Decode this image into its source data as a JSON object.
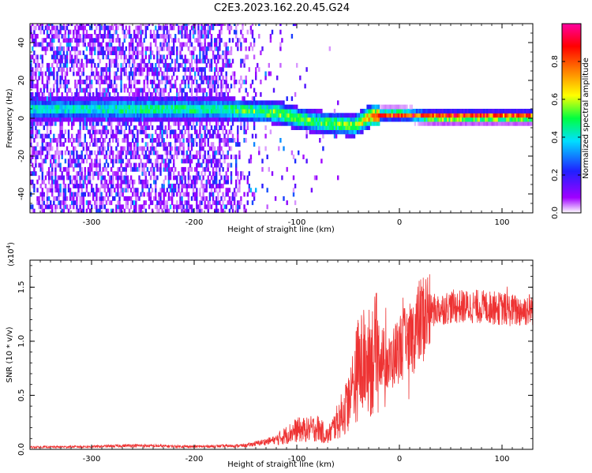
{
  "title": "C2E3.2023.162.20.45.G24",
  "chart_data": [
    {
      "type": "heatmap",
      "xlabel": "Height of straight line (km)",
      "ylabel": "Frequency (Hz)",
      "xlim": [
        -360,
        130
      ],
      "ylim": [
        -50,
        50
      ],
      "xticks": [
        -300,
        -200,
        -100,
        0,
        100
      ],
      "xtick_labels": [
        "-300",
        "-200",
        "-100",
        "0",
        "100"
      ],
      "yticks": [
        -40,
        -20,
        0,
        20,
        40
      ],
      "ytick_labels": [
        "-40",
        "-20",
        "0",
        "20",
        "40"
      ],
      "colorbar": {
        "label": "Normalized spectral amplitude",
        "range": [
          0,
          1
        ],
        "ticks": [
          0.0,
          0.2,
          0.4,
          0.6,
          0.8
        ],
        "tick_labels": [
          "0.0",
          "0.2",
          "0.4",
          "0.6",
          "0.8"
        ],
        "colors": [
          "#ffffff",
          "#a000ff",
          "#2040ff",
          "#00e0ff",
          "#00ff40",
          "#ffff00",
          "#ff8000",
          "#ff0000",
          "#ff00a0"
        ]
      },
      "description_series": {
        "noise_floor_amplitude_range": [
          0.0,
          0.15
        ],
        "line_center_hz": [
          [
            -300,
            4
          ],
          [
            -270,
            4
          ],
          [
            -175,
            4
          ],
          [
            -150,
            3
          ],
          [
            -120,
            2
          ],
          [
            -100,
            -1
          ],
          [
            -80,
            -3
          ],
          [
            -60,
            -4
          ],
          [
            -45,
            -5
          ],
          [
            -30,
            0
          ],
          [
            -15,
            1
          ],
          [
            0,
            1
          ],
          [
            30,
            0
          ],
          [
            70,
            0
          ],
          [
            100,
            0
          ],
          [
            130,
            0
          ]
        ],
        "line_peak_amplitude": [
          [
            -300,
            0.45
          ],
          [
            -270,
            0.5
          ],
          [
            -175,
            0.5
          ],
          [
            -120,
            0.6
          ],
          [
            -80,
            0.55
          ],
          [
            -45,
            0.6
          ],
          [
            -20,
            0.9
          ],
          [
            0,
            0.9
          ],
          [
            50,
            0.95
          ],
          [
            130,
            0.9
          ]
        ]
      }
    },
    {
      "type": "line",
      "xlabel": "Height of straight line (km)",
      "ylabel": "SNR (10 * v/v)",
      "scale_label": "(x10",
      "scale_exp": "4",
      "scale_close": ")",
      "xlim": [
        -360,
        130
      ],
      "ylim": [
        0,
        17500
      ],
      "xticks": [
        -300,
        -200,
        -100,
        0,
        100
      ],
      "xtick_labels": [
        "-300",
        "-200",
        "-100",
        "0",
        "100"
      ],
      "yticks": [
        0,
        5000,
        10000,
        15000
      ],
      "ytick_labels": [
        "0.0",
        "0.5",
        "1.0",
        "1.5"
      ],
      "series": [
        {
          "name": "SNR",
          "color": "#ee3333",
          "x": [
            -360,
            -300,
            -260,
            -200,
            -150,
            -120,
            -100,
            -90,
            -80,
            -70,
            -60,
            -50,
            -40,
            -30,
            -20,
            -10,
            0,
            10,
            20,
            30,
            50,
            80,
            100,
            115,
            130
          ],
          "y": [
            200,
            250,
            350,
            250,
            350,
            900,
            1800,
            1800,
            2000,
            1200,
            2600,
            4200,
            7600,
            8200,
            9000,
            7800,
            9500,
            10000,
            11800,
            12800,
            13200,
            13200,
            13000,
            12800,
            13000
          ]
        }
      ]
    }
  ]
}
